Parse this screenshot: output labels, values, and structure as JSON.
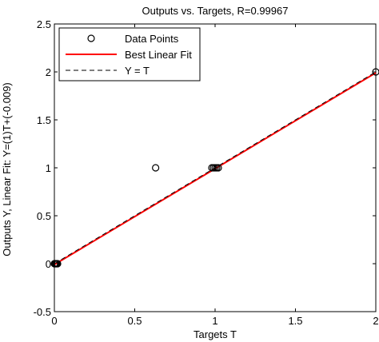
{
  "chart_data": {
    "type": "scatter",
    "title": "Outputs vs. Targets, R=0.99967",
    "xlabel": "Targets T",
    "ylabel": "Outputs Y,  Linear Fit: Y=(1)T+(-0.009)",
    "xlim": [
      0,
      2
    ],
    "ylim": [
      -0.5,
      2.5
    ],
    "xticks": [
      0,
      0.5,
      1,
      1.5,
      2
    ],
    "xtick_labels": [
      "0",
      "0.5",
      "1",
      "1.5",
      "2"
    ],
    "yticks": [
      -0.5,
      0,
      0.5,
      1,
      1.5,
      2,
      2.5
    ],
    "ytick_labels": [
      "-0.5",
      "0",
      "0.5",
      "1",
      "1.5",
      "2",
      "2.5"
    ],
    "grid": false,
    "legend_position": "top-left",
    "series": [
      {
        "name": "Data Points",
        "kind": "markers",
        "marker": "open-circle",
        "color": "#000000",
        "points": [
          [
            0,
            0
          ],
          [
            0.005,
            0
          ],
          [
            0.01,
            0
          ],
          [
            0.015,
            0
          ],
          [
            0.02,
            0
          ],
          [
            0.63,
            1
          ],
          [
            0.98,
            1
          ],
          [
            0.99,
            1
          ],
          [
            1.0,
            1
          ],
          [
            1.01,
            1
          ],
          [
            1.02,
            1
          ],
          [
            2.0,
            2
          ]
        ]
      },
      {
        "name": "Best Linear Fit",
        "kind": "line",
        "color": "#ff0000",
        "dash": "solid",
        "slope": 1,
        "intercept": -0.009,
        "x": [
          0,
          2
        ]
      },
      {
        "name": "Y = T",
        "kind": "line",
        "color": "#000000",
        "dash": "dashed",
        "slope": 1,
        "intercept": 0,
        "x": [
          0,
          2
        ]
      }
    ]
  }
}
